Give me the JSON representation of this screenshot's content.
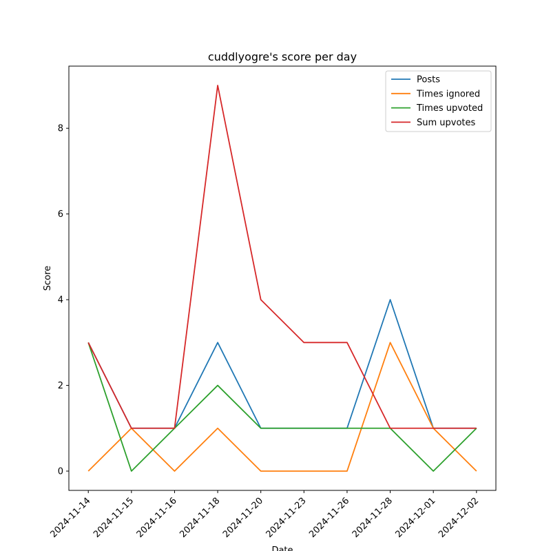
{
  "chart_data": {
    "type": "line",
    "title": "cuddlyogre's score per day",
    "xlabel": "Date",
    "ylabel": "Score",
    "categories": [
      "2024-11-14",
      "2024-11-15",
      "2024-11-16",
      "2024-11-18",
      "2024-11-20",
      "2024-11-23",
      "2024-11-26",
      "2024-11-28",
      "2024-12-01",
      "2024-12-02"
    ],
    "ylim": [
      -0.45,
      9.45
    ],
    "yticks": [
      0,
      2,
      4,
      6,
      8
    ],
    "grid": false,
    "legend_position": "top-right",
    "series": [
      {
        "name": "Posts",
        "color": "#1f77b4",
        "values": [
          3,
          1,
          1,
          3,
          1,
          1,
          1,
          4,
          1,
          1
        ]
      },
      {
        "name": "Times ignored",
        "color": "#ff7f0e",
        "values": [
          0,
          1,
          0,
          1,
          0,
          0,
          0,
          3,
          1,
          0
        ]
      },
      {
        "name": "Times upvoted",
        "color": "#2ca02c",
        "values": [
          3,
          0,
          1,
          2,
          1,
          1,
          1,
          1,
          0,
          1
        ]
      },
      {
        "name": "Sum upvotes",
        "color": "#d62728",
        "values": [
          3,
          1,
          1,
          9,
          4,
          3,
          3,
          1,
          1,
          1
        ]
      }
    ]
  }
}
